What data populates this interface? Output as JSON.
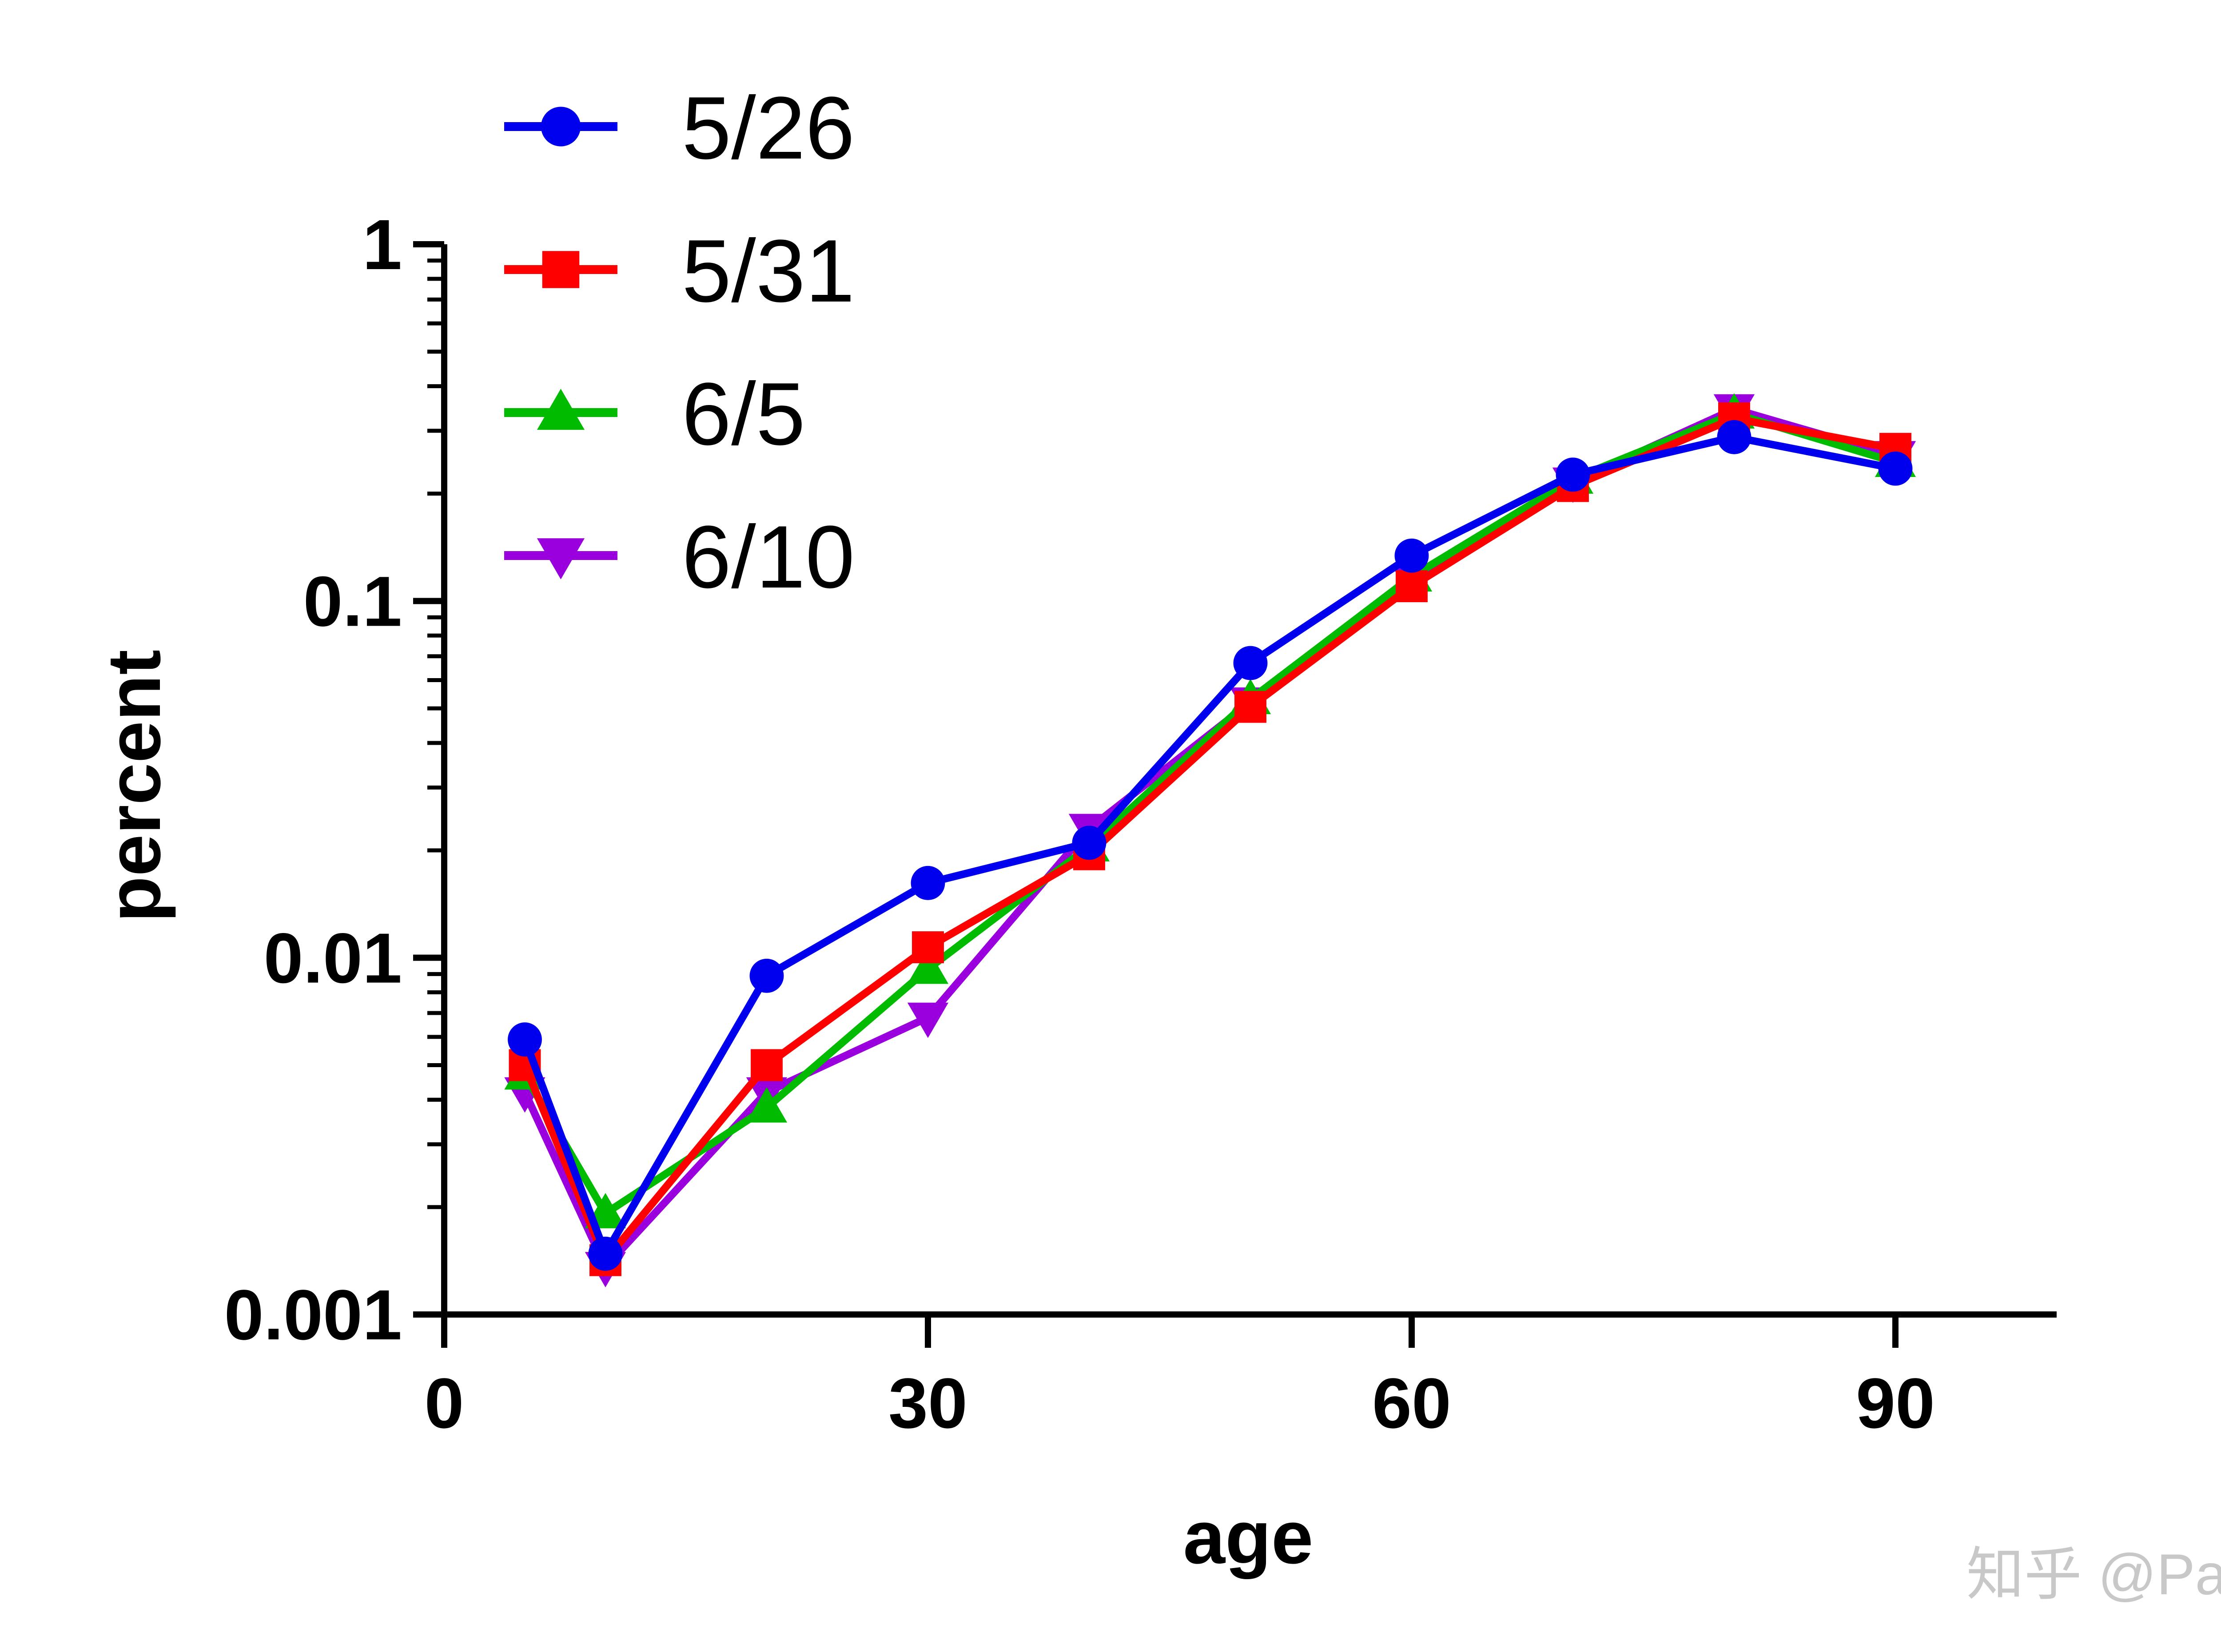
{
  "chart_data": {
    "type": "line",
    "title": "",
    "xlabel": "age",
    "ylabel": "percent",
    "x_scale": "linear",
    "y_scale": "log",
    "xlim": [
      0,
      100
    ],
    "ylim": [
      0.001,
      1
    ],
    "x_ticks": [
      0,
      30,
      60,
      90
    ],
    "x_tick_labels": [
      "0",
      "30",
      "60",
      "90"
    ],
    "y_ticks": [
      0.001,
      0.01,
      0.1,
      1
    ],
    "y_tick_labels": [
      "0.001",
      "0.01",
      "0.1",
      "1"
    ],
    "grid": false,
    "legend_position": "top-left",
    "x": [
      5,
      10,
      20,
      30,
      40,
      50,
      60,
      70,
      80,
      90
    ],
    "series": [
      {
        "name": "5/26",
        "color": "#0000ee",
        "marker": "circle",
        "values": [
          0.0059,
          0.00148,
          0.0089,
          0.0162,
          0.021,
          0.067,
          0.134,
          0.226,
          0.288,
          0.235
        ]
      },
      {
        "name": "5/31",
        "color": "#ff0000",
        "marker": "square",
        "values": [
          0.005,
          0.00142,
          0.005,
          0.0107,
          0.0195,
          0.0505,
          0.11,
          0.21,
          0.325,
          0.267
        ]
      },
      {
        "name": "6/5",
        "color": "#00bb00",
        "marker": "triangle-up",
        "values": [
          0.0047,
          0.00192,
          0.0038,
          0.0093,
          0.0205,
          0.053,
          0.117,
          0.22,
          0.335,
          0.245
        ]
      },
      {
        "name": "6/10",
        "color": "#9900dd",
        "marker": "triangle-down",
        "values": [
          0.0042,
          0.00136,
          0.0042,
          0.0068,
          0.023,
          0.052,
          0.115,
          0.215,
          0.345,
          0.255
        ]
      }
    ]
  },
  "watermark": "知乎 @Pat"
}
